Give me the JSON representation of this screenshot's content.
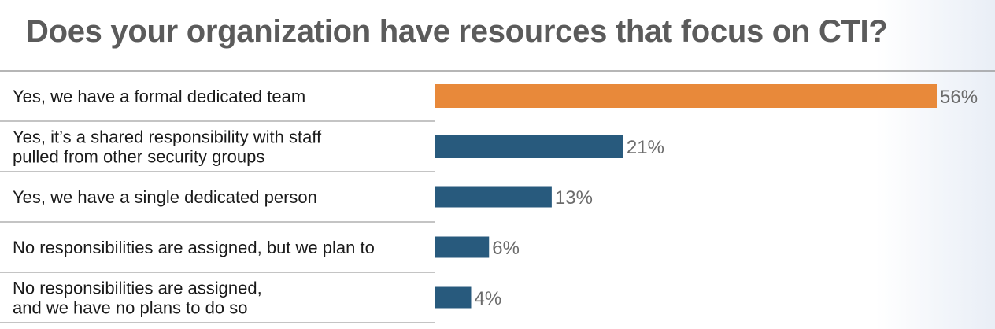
{
  "chart_data": {
    "type": "bar",
    "orientation": "horizontal",
    "title": "Does your organization have resources that focus on CTI?",
    "categories": [
      [
        "Yes, we have a formal dedicated team"
      ],
      [
        "Yes, it’s a shared responsibility with staff",
        "pulled from other security groups"
      ],
      [
        "Yes, we have a single dedicated person"
      ],
      [
        "No responsibilities are assigned, but we plan to"
      ],
      [
        "No responsibilities are assigned,",
        "and we have no plans to do so"
      ]
    ],
    "values": [
      56,
      21,
      13,
      6,
      4
    ],
    "value_labels": [
      "56%",
      "21%",
      "13%",
      "6%",
      "4%"
    ],
    "unit": "%",
    "xlim": [
      0,
      56
    ],
    "highlight_index": 0,
    "colors": {
      "highlight": "#e8893a",
      "default": "#285a7d",
      "divider": "#8a8a8a"
    },
    "grid": false,
    "legend": "none"
  }
}
